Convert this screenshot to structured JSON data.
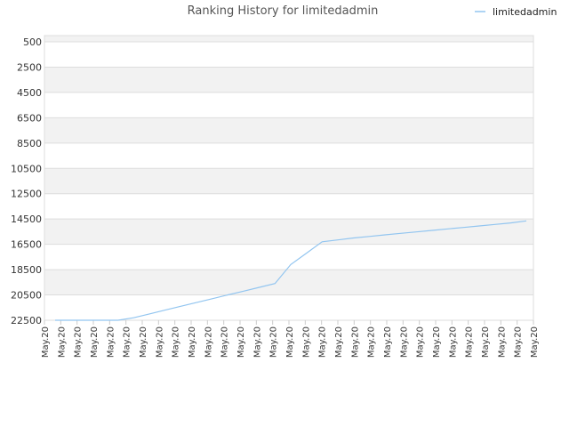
{
  "chart_data": {
    "type": "line",
    "title": "Ranking History for limitedadmin",
    "xlabel": "",
    "ylabel": "",
    "y_inverted": true,
    "ylim": [
      22500,
      500
    ],
    "yticks": [
      500,
      2500,
      4500,
      6500,
      8500,
      10500,
      12500,
      14500,
      16500,
      18500,
      20500,
      22500
    ],
    "grid": "horizontal alternating bands",
    "legend": {
      "position": "top-right",
      "entries": [
        "limitedadmin"
      ]
    },
    "categories": [
      "May.20",
      "May.20",
      "May.20",
      "May.20",
      "May.20",
      "May.20",
      "May.20",
      "May.20",
      "May.20",
      "May.20",
      "May.20",
      "May.20",
      "May.20",
      "May.20",
      "May.20",
      "May.20",
      "May.20",
      "May.20",
      "May.20",
      "May.20",
      "May.20",
      "May.20",
      "May.20",
      "May.20",
      "May.20",
      "May.20",
      "May.20",
      "May.20",
      "May.20",
      "May.20",
      "May.20"
    ],
    "series": [
      {
        "name": "limitedadmin",
        "color": "#92c5f0",
        "values": [
          22500,
          22500,
          22500,
          22500,
          22500,
          22300,
          22000,
          21700,
          21400,
          21100,
          20800,
          20500,
          20200,
          19900,
          19600,
          18100,
          17200,
          16300,
          16150,
          16000,
          15880,
          15750,
          15630,
          15520,
          15400,
          15280,
          15170,
          15050,
          14930,
          14810,
          14650
        ]
      }
    ],
    "colors": {
      "band": "#f2f2f2",
      "grid": "#dddddd",
      "axis": "#cccccc"
    }
  }
}
